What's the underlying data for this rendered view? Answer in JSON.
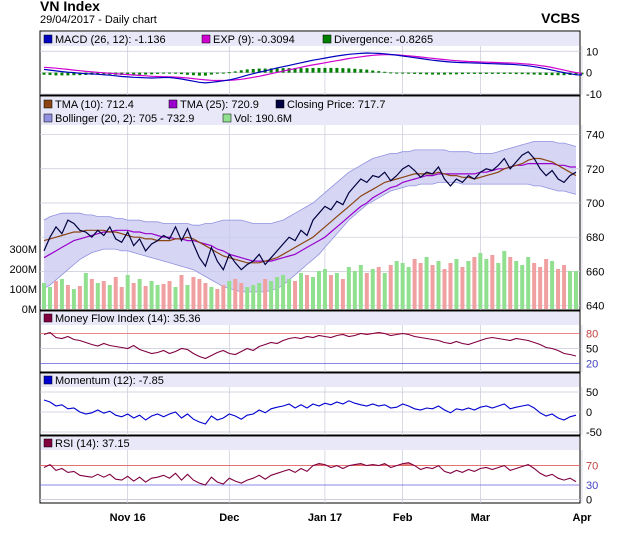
{
  "header": {
    "title": "VN Index",
    "subtitle": "29/04/2017 - Daily chart",
    "brand": "VCBS"
  },
  "colors": {
    "panel_bg": "#ffffff",
    "legend_bg": "#e8e8f8",
    "grid": "#c8c8d8",
    "macd": "#0000c0",
    "exp": "#d000d0",
    "divergence": "#008000",
    "tma10": "#8b4513",
    "tma25": "#9900cc",
    "close": "#000040",
    "bollinger_fill": "#c8c8f0",
    "bollinger_line": "#9090e0",
    "vol_up": "#90e090",
    "vol_down": "#f0a0a0",
    "mfi": "#800040",
    "momentum": "#0000d0",
    "rsi": "#800040",
    "overbought_line": "#e06060",
    "oversold_line": "#6060e0",
    "fill_over": "#e06060",
    "fill_under": "#6060e0"
  },
  "chart_data": [
    {
      "type": "line",
      "title": "MACD",
      "legend": [
        {
          "label": "MACD (26, 12): -1.136",
          "color": "#0000c0"
        },
        {
          "label": "EXP (9): -0.3094",
          "color": "#d000d0"
        },
        {
          "label": "Divergence: -0.8265",
          "color": "#008000"
        }
      ],
      "yticks": [
        10,
        0,
        -10
      ],
      "ylim": [
        -10,
        12
      ],
      "series": [
        {
          "name": "MACD",
          "values": [
            1.5,
            1.2,
            0.8,
            0.5,
            0.2,
            0.0,
            -0.3,
            -0.5,
            -0.6,
            -0.8,
            -1.0,
            -1.2,
            -1.5,
            -1.8,
            -2.0,
            -2.2,
            -2.3,
            -2.4,
            -2.5,
            -2.4,
            -2.3,
            -2.3,
            -2.6,
            -3.0,
            -3.5,
            -4.0,
            -4.5,
            -4.8,
            -4.5,
            -4.2,
            -3.8,
            -3.4,
            -2.8,
            -2.0,
            -1.2,
            -0.5,
            0.2,
            0.8,
            1.5,
            2.2,
            2.8,
            3.4,
            4.0,
            4.6,
            5.2,
            5.8,
            6.3,
            6.8,
            7.3,
            7.8,
            8.2,
            8.6,
            8.8,
            9.0,
            9.2,
            9.1,
            9.0,
            8.8,
            8.5,
            8.2,
            7.8,
            7.4,
            7.0,
            6.6,
            6.2,
            5.8,
            5.5,
            5.2,
            5.0,
            4.8,
            4.7,
            4.6,
            4.5,
            4.4,
            4.3,
            4.2,
            4.1,
            4.0,
            3.9,
            3.7,
            3.5,
            3.2,
            2.8,
            2.3,
            1.8,
            1.2,
            0.6,
            0.0,
            -0.5,
            -1.0,
            -1.1
          ]
        },
        {
          "name": "EXP",
          "values": [
            2.5,
            2.3,
            2.1,
            1.8,
            1.5,
            1.2,
            0.9,
            0.6,
            0.4,
            0.1,
            -0.1,
            -0.3,
            -0.5,
            -0.7,
            -0.9,
            -1.1,
            -1.3,
            -1.5,
            -1.7,
            -1.8,
            -1.9,
            -2.0,
            -2.1,
            -2.3,
            -2.5,
            -2.8,
            -3.1,
            -3.4,
            -3.6,
            -3.7,
            -3.7,
            -3.6,
            -3.4,
            -3.1,
            -2.7,
            -2.2,
            -1.7,
            -1.1,
            -0.5,
            0.1,
            0.7,
            1.3,
            1.9,
            2.5,
            3.1,
            3.6,
            4.1,
            4.6,
            5.1,
            5.6,
            6.1,
            6.6,
            7.0,
            7.4,
            7.8,
            8.1,
            8.3,
            8.4,
            8.4,
            8.3,
            8.1,
            7.9,
            7.6,
            7.3,
            7.0,
            6.7,
            6.4,
            6.1,
            5.8,
            5.6,
            5.4,
            5.2,
            5.1,
            5.0,
            4.9,
            4.8,
            4.7,
            4.6,
            4.5,
            4.4,
            4.2,
            4.0,
            3.7,
            3.3,
            2.9,
            2.4,
            1.8,
            1.2,
            0.6,
            0.0,
            -0.3
          ]
        }
      ]
    },
    {
      "type": "line",
      "title": "Price",
      "legend": [
        {
          "label": "TMA (10): 712.4",
          "color": "#8b4513"
        },
        {
          "label": "TMA (25): 720.9",
          "color": "#9900cc"
        },
        {
          "label": "Closing Price: 717.7",
          "color": "#000040"
        },
        {
          "label": "Bollinger (20, 2): 705 - 732.9",
          "color": "#9090e0"
        },
        {
          "label": "Vol: 190.6M",
          "color": "#90e090"
        }
      ],
      "yticks": [
        740,
        720,
        700,
        680,
        660,
        640
      ],
      "ylim": [
        638,
        745
      ],
      "vol_ticks": [
        "300M",
        "200M",
        "100M",
        "0M"
      ],
      "vol_values": [
        300,
        200,
        100,
        0
      ],
      "xlabels": [
        "Nov 16",
        "Dec",
        "Jan 17",
        "Feb",
        "Mar",
        "Apr"
      ],
      "x_tick_index": [
        14,
        31,
        47,
        60,
        73,
        90
      ],
      "close": [
        672,
        680,
        686,
        682,
        690,
        688,
        684,
        683,
        680,
        684,
        681,
        686,
        679,
        677,
        683,
        675,
        679,
        672,
        676,
        678,
        681,
        679,
        686,
        678,
        685,
        676,
        668,
        663,
        674,
        666,
        661,
        670,
        665,
        661,
        664,
        666,
        670,
        664,
        668,
        672,
        676,
        680,
        678,
        684,
        681,
        690,
        694,
        698,
        696,
        701,
        699,
        706,
        710,
        714,
        712,
        716,
        715,
        718,
        713,
        716,
        720,
        722,
        719,
        715,
        718,
        717,
        721,
        714,
        710,
        714,
        712,
        716,
        714,
        718,
        720,
        719,
        722,
        726,
        720,
        724,
        728,
        730,
        726,
        720,
        716,
        719,
        714,
        712,
        716,
        718
      ],
      "tma10": [
        678,
        679,
        680,
        681,
        682,
        683,
        683,
        684,
        684,
        684,
        684,
        683,
        683,
        682,
        681,
        680,
        680,
        679,
        679,
        678,
        678,
        678,
        679,
        679,
        680,
        679,
        677,
        675,
        673,
        671,
        669,
        668,
        667,
        666,
        665,
        665,
        665,
        666,
        667,
        668,
        670,
        672,
        674,
        676,
        678,
        680,
        683,
        686,
        689,
        692,
        695,
        698,
        701,
        704,
        706,
        708,
        710,
        712,
        713,
        714,
        715,
        716,
        717,
        717,
        717,
        717,
        718,
        717,
        716,
        716,
        715,
        715,
        714,
        715,
        716,
        717,
        718,
        720,
        721,
        722,
        723,
        725,
        726,
        726,
        725,
        724,
        722,
        720,
        718,
        716
      ],
      "tma25": [
        668,
        670,
        672,
        674,
        676,
        678,
        679,
        680,
        681,
        682,
        683,
        683,
        684,
        684,
        684,
        683,
        683,
        682,
        682,
        681,
        680,
        680,
        679,
        679,
        678,
        678,
        677,
        676,
        675,
        673,
        672,
        670,
        669,
        668,
        667,
        666,
        666,
        666,
        666,
        667,
        668,
        669,
        670,
        672,
        674,
        676,
        678,
        680,
        683,
        686,
        689,
        692,
        695,
        698,
        700,
        703,
        705,
        707,
        709,
        710,
        712,
        713,
        714,
        715,
        716,
        716,
        717,
        717,
        717,
        717,
        717,
        717,
        717,
        718,
        718,
        719,
        720,
        720,
        721,
        722,
        722,
        723,
        723,
        723,
        723,
        723,
        722,
        722,
        721,
        721
      ],
      "boll_upper": [
        690,
        692,
        693,
        694,
        694,
        694,
        694,
        693,
        693,
        692,
        692,
        692,
        691,
        691,
        690,
        690,
        690,
        689,
        689,
        689,
        688,
        688,
        688,
        688,
        688,
        687,
        687,
        688,
        688,
        689,
        690,
        690,
        690,
        690,
        689,
        688,
        688,
        688,
        688,
        689,
        690,
        692,
        694,
        696,
        698,
        700,
        703,
        706,
        709,
        712,
        715,
        718,
        720,
        722,
        724,
        726,
        727,
        728,
        729,
        729,
        730,
        730,
        731,
        731,
        731,
        731,
        731,
        731,
        730,
        730,
        730,
        730,
        729,
        729,
        729,
        729,
        730,
        731,
        732,
        733,
        734,
        735,
        736,
        736,
        736,
        736,
        735,
        735,
        734,
        733
      ],
      "boll_lower": [
        650,
        652,
        655,
        658,
        661,
        664,
        667,
        669,
        671,
        672,
        673,
        673,
        673,
        672,
        672,
        671,
        670,
        669,
        668,
        667,
        666,
        665,
        664,
        663,
        662,
        661,
        659,
        657,
        655,
        653,
        651,
        650,
        649,
        648,
        648,
        648,
        648,
        648,
        649,
        650,
        652,
        655,
        658,
        661,
        664,
        667,
        670,
        674,
        678,
        682,
        686,
        690,
        693,
        696,
        699,
        701,
        703,
        705,
        707,
        708,
        709,
        710,
        710,
        711,
        711,
        711,
        712,
        712,
        712,
        712,
        711,
        711,
        711,
        711,
        711,
        711,
        711,
        711,
        711,
        711,
        711,
        711,
        710,
        710,
        709,
        708,
        707,
        707,
        706,
        705
      ],
      "volume": [
        130,
        110,
        140,
        150,
        120,
        100,
        115,
        180,
        150,
        130,
        140,
        120,
        160,
        110,
        170,
        130,
        150,
        115,
        140,
        120,
        125,
        140,
        110,
        170,
        120,
        160,
        150,
        130,
        110,
        100,
        120,
        140,
        150,
        130,
        110,
        120,
        130,
        150,
        140,
        160,
        170,
        150,
        140,
        180,
        170,
        160,
        190,
        200,
        170,
        180,
        150,
        210,
        190,
        220,
        180,
        200,
        210,
        180,
        220,
        240,
        230,
        210,
        250,
        230,
        260,
        220,
        240,
        200,
        230,
        250,
        210,
        240,
        260,
        280,
        250,
        270,
        230,
        290,
        260,
        240,
        220,
        260,
        230,
        210,
        250,
        240,
        200,
        220,
        190,
        190
      ],
      "volume_up": [
        1,
        1,
        0,
        1,
        0,
        1,
        0,
        1,
        0,
        1,
        0,
        1,
        0,
        0,
        1,
        0,
        1,
        0,
        1,
        1,
        0,
        0,
        1,
        0,
        1,
        0,
        0,
        0,
        1,
        0,
        0,
        1,
        0,
        0,
        1,
        1,
        1,
        0,
        1,
        1,
        1,
        1,
        0,
        1,
        0,
        1,
        1,
        1,
        0,
        1,
        0,
        1,
        1,
        1,
        0,
        1,
        0,
        1,
        0,
        1,
        1,
        1,
        0,
        0,
        1,
        0,
        1,
        0,
        0,
        1,
        0,
        1,
        0,
        1,
        1,
        0,
        1,
        1,
        0,
        1,
        1,
        1,
        0,
        0,
        0,
        1,
        0,
        0,
        1,
        1
      ]
    },
    {
      "type": "line",
      "title": "Money Flow Index",
      "legend": [
        {
          "label": "Money Flow Index (14): 35.36",
          "color": "#800040"
        }
      ],
      "yticks": [
        80,
        50,
        20
      ],
      "ylim": [
        5,
        95
      ],
      "overbought": 80,
      "oversold": 20,
      "values": [
        78,
        82,
        72,
        70,
        74,
        68,
        66,
        62,
        58,
        55,
        60,
        56,
        54,
        52,
        50,
        56,
        48,
        44,
        40,
        42,
        46,
        40,
        44,
        50,
        48,
        40,
        34,
        30,
        36,
        42,
        46,
        40,
        38,
        44,
        50,
        46,
        54,
        58,
        62,
        60,
        66,
        70,
        72,
        70,
        74,
        72,
        76,
        74,
        72,
        76,
        78,
        74,
        76,
        80,
        78,
        80,
        82,
        80,
        76,
        78,
        80,
        78,
        74,
        72,
        70,
        68,
        66,
        62,
        60,
        64,
        60,
        58,
        62,
        66,
        70,
        72,
        70,
        68,
        66,
        70,
        68,
        66,
        62,
        58,
        52,
        50,
        46,
        40,
        38,
        35
      ]
    },
    {
      "type": "line",
      "title": "Momentum",
      "legend": [
        {
          "label": "Momentum (12): -7.85",
          "color": "#0000d0"
        }
      ],
      "yticks": [
        50,
        0,
        -50
      ],
      "ylim": [
        -55,
        60
      ],
      "values": [
        30,
        25,
        15,
        18,
        8,
        10,
        0,
        -5,
        -2,
        5,
        -3,
        2,
        -8,
        -12,
        -5,
        -15,
        -8,
        -20,
        -10,
        -5,
        -12,
        -5,
        0,
        -15,
        -5,
        -18,
        -25,
        -30,
        -10,
        -20,
        -15,
        -5,
        -10,
        -18,
        -8,
        -5,
        5,
        -2,
        8,
        12,
        15,
        20,
        10,
        18,
        10,
        20,
        15,
        22,
        18,
        25,
        20,
        28,
        22,
        18,
        15,
        20,
        15,
        18,
        10,
        12,
        20,
        15,
        8,
        5,
        10,
        8,
        15,
        5,
        -2,
        8,
        5,
        10,
        5,
        12,
        15,
        10,
        15,
        20,
        8,
        12,
        15,
        18,
        10,
        -2,
        -10,
        -5,
        -15,
        -20,
        -12,
        -8
      ]
    },
    {
      "type": "line",
      "title": "RSI",
      "legend": [
        {
          "label": "RSI (14): 37.15",
          "color": "#800040"
        }
      ],
      "yticks": [
        70,
        30,
        0
      ],
      "ylim": [
        -5,
        100
      ],
      "overbought": 70,
      "oversold": 30,
      "values": [
        66,
        72,
        60,
        64,
        56,
        58,
        50,
        48,
        46,
        52,
        46,
        52,
        42,
        40,
        48,
        38,
        46,
        36,
        44,
        46,
        50,
        44,
        54,
        40,
        52,
        40,
        34,
        30,
        46,
        36,
        32,
        44,
        38,
        34,
        40,
        44,
        50,
        42,
        50,
        54,
        58,
        62,
        56,
        64,
        58,
        70,
        74,
        72,
        66,
        70,
        64,
        70,
        72,
        74,
        70,
        72,
        70,
        74,
        66,
        70,
        74,
        76,
        70,
        62,
        66,
        64,
        70,
        58,
        54,
        60,
        56,
        62,
        58,
        64,
        66,
        62,
        66,
        70,
        60,
        64,
        68,
        72,
        64,
        54,
        48,
        52,
        44,
        40,
        44,
        37
      ]
    }
  ]
}
